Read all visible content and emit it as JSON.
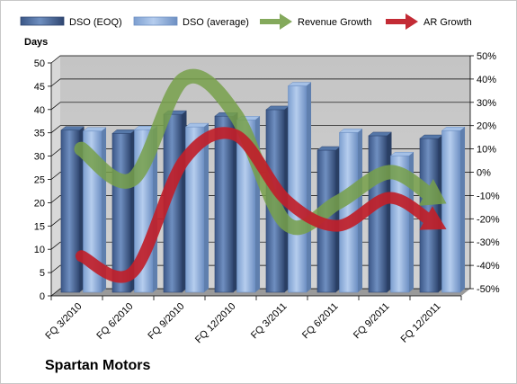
{
  "chart_data": {
    "type": "bar",
    "title": "Spartan Motors",
    "ylabel": "Days",
    "y2label": "",
    "categories": [
      "FQ 3/2010",
      "FQ 6/2010",
      "FQ 9/2010",
      "FQ 12/2010",
      "FQ 3/2011",
      "FQ 6/2011",
      "FQ 9/2011",
      "FQ 12/2011"
    ],
    "ylim": [
      0,
      50
    ],
    "ystep": 5,
    "y2lim": [
      -50,
      50
    ],
    "y2step": 10,
    "y2_unit": "%",
    "grid": true,
    "legend_position": "top",
    "bar_series": [
      {
        "name": "DSO (EOQ)",
        "values": [
          34.8,
          34.1,
          38.2,
          37.8,
          39.2,
          30.5,
          33.6,
          33.0
        ],
        "color": "#4f6f9f"
      },
      {
        "name": "DSO (average)",
        "values": [
          34.6,
          34.9,
          35.5,
          37.0,
          44.3,
          34.3,
          29.3,
          34.7
        ],
        "color": "#8fb0dd"
      }
    ],
    "arrow_series": [
      {
        "name": "Revenue Growth",
        "values": [
          10,
          -3,
          40,
          25,
          -22,
          -13,
          0,
          -12
        ],
        "color": "#77a04a"
      },
      {
        "name": "AR Growth",
        "values": [
          -36,
          -43,
          5,
          16,
          -12,
          -23,
          -11,
          -23
        ],
        "color": "#c0202a"
      }
    ]
  }
}
